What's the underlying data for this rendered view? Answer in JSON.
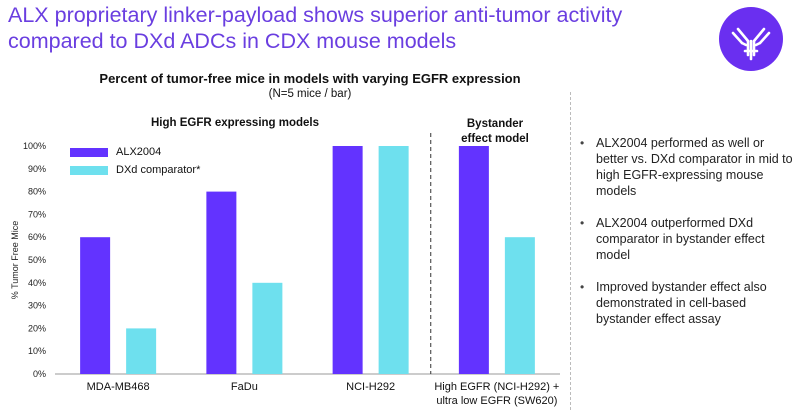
{
  "headline": "ALX proprietary linker-payload shows superior anti-tumor activity compared to DXd ADCs in CDX mouse models",
  "logo": {
    "icon": "antibody-icon",
    "bg_color": "#6a2ff0"
  },
  "colors": {
    "accent": "#6a3ee0",
    "alx2004": "#6333ff",
    "dxd": "#6ee0ee"
  },
  "chart_data": {
    "type": "bar",
    "title": "Percent of tumor-free mice in models with varying EGFR expression",
    "subtitle": "(N=5 mice / bar)",
    "ylabel": "% Tumor Free Mice",
    "ylim": [
      0,
      100
    ],
    "yticks": [
      "0%",
      "10%",
      "20%",
      "30%",
      "40%",
      "50%",
      "60%",
      "70%",
      "80%",
      "90%",
      "100%"
    ],
    "categories": [
      "MDA-MB468",
      "FaDu",
      "NCI-H292",
      "High EGFR (NCI-H292) + ultra low EGFR (SW620)"
    ],
    "category_lines": [
      [
        "MDA-MB468"
      ],
      [
        "FaDu"
      ],
      [
        "NCI-H292"
      ],
      [
        "High EGFR (NCI-H292) +",
        "ultra low EGFR (SW620)"
      ]
    ],
    "series": [
      {
        "name": "ALX2004",
        "values": [
          60,
          80,
          100,
          100
        ]
      },
      {
        "name": "DXd comparator*",
        "values": [
          20,
          40,
          100,
          60
        ]
      }
    ],
    "group_labels": [
      "High EGFR expressing models",
      "Bystander effect model"
    ],
    "legend_position": "top-left",
    "grid": false
  },
  "bullets": [
    "ALX2004 performed as well or better vs. DXd comparator in mid to high EGFR-expressing mouse models",
    "ALX2004 outperformed DXd comparator in bystander effect model",
    "Improved bystander effect also demonstrated in cell-based bystander effect assay"
  ]
}
